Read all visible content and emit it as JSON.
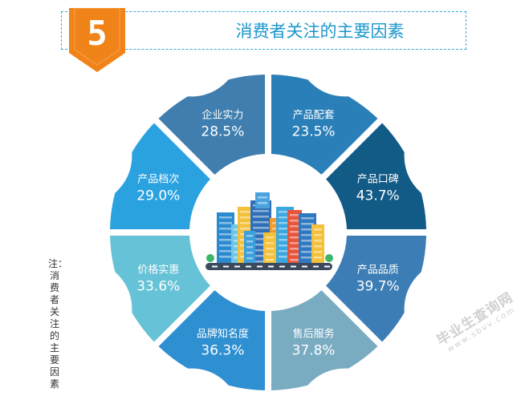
{
  "header": {
    "number": "5",
    "title": "消费者关注的主要因素"
  },
  "note": "注：消费者关注的主要因素",
  "watermark": {
    "main": "毕业生查询网",
    "url": "www.sbvv.com"
  },
  "colors": {
    "title": "#1b97cd",
    "badge": "#f08419",
    "border": "#38a9d6"
  },
  "chart_data": {
    "type": "pie",
    "style": "ring-of-labeled-segments",
    "title": "",
    "segments": [
      {
        "name": "产品配套",
        "value": 23.5,
        "label": "23.5%",
        "color": "#2a7fb8"
      },
      {
        "name": "产品口碑",
        "value": 43.7,
        "label": "43.7%",
        "color": "#135b87"
      },
      {
        "name": "产品品质",
        "value": 39.7,
        "label": "39.7%",
        "color": "#3c7db5"
      },
      {
        "name": "售后服务",
        "value": 37.8,
        "label": "37.8%",
        "color": "#79abc1"
      },
      {
        "name": "品牌知名度",
        "value": 36.3,
        "label": "36.3%",
        "color": "#2e8fd1"
      },
      {
        "name": "价格实惠",
        "value": 33.6,
        "label": "33.6%",
        "color": "#66c2d6"
      },
      {
        "name": "产品档次",
        "value": 29.0,
        "label": "29.0%",
        "color": "#2ba2e0"
      },
      {
        "name": "企业实力",
        "value": 28.5,
        "label": "28.5%",
        "color": "#3f7eaf"
      }
    ]
  }
}
